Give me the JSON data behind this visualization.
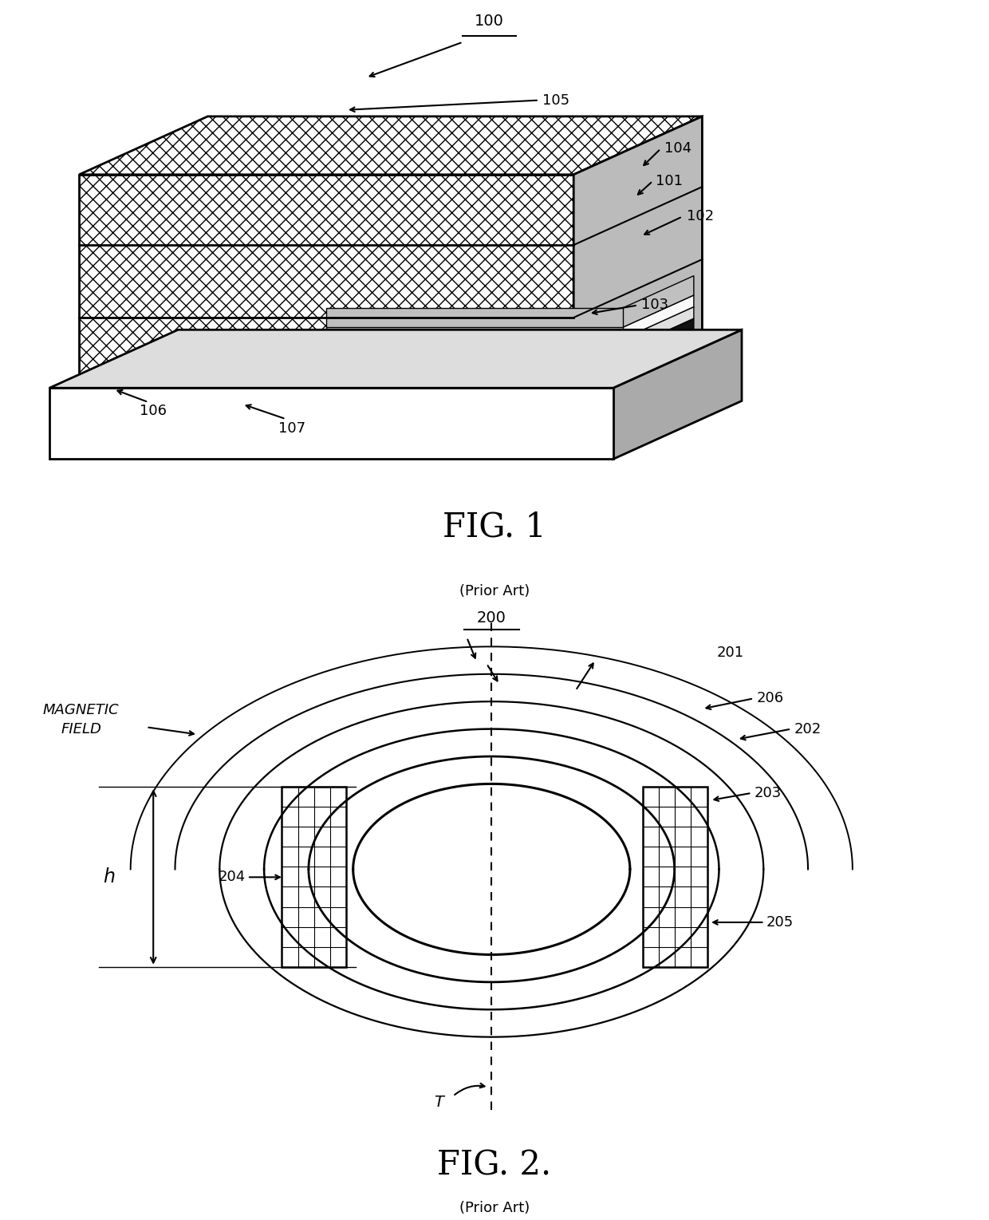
{
  "fig1_title": "FIG. 1",
  "fig1_prior_art": "(Prior Art)",
  "fig2_title": "FIG. 2.",
  "fig2_prior_art": "(Prior Art)",
  "bg_color": "#ffffff",
  "line_color": "#000000"
}
